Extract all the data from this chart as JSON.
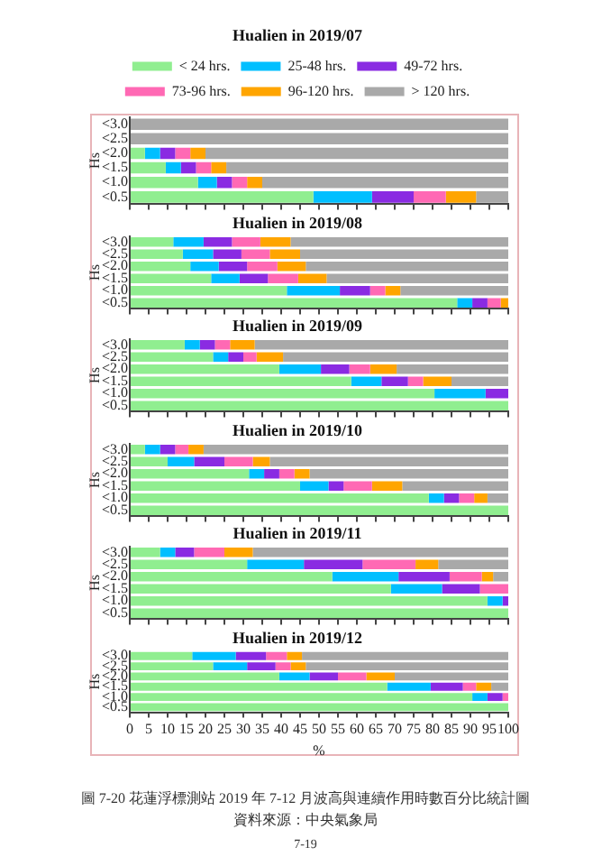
{
  "chart_data": [
    {
      "type": "bar",
      "orientation": "horizontal",
      "stacked": true,
      "title": "Hualien in 2019/07",
      "ylabel": "Hs",
      "legend": "top",
      "grid": false,
      "tick_labels": "y",
      "categories": [
        "<3.0",
        "<2.5",
        "<2.0",
        "<1.5",
        "<1.0",
        "<0.5"
      ],
      "xlim": [
        0,
        100
      ],
      "xticks": [
        0,
        5,
        10,
        15,
        20,
        25,
        30,
        35,
        40,
        45,
        50,
        55,
        60,
        65,
        70,
        75,
        80,
        85,
        90,
        95,
        100
      ],
      "series": [
        {
          "name": "< 24 hrs.",
          "color": "#90ee90",
          "values": [
            0,
            0,
            4,
            9.5,
            18,
            48.5
          ]
        },
        {
          "name": "25-48 hrs.",
          "color": "#00bfff",
          "values": [
            0,
            0,
            4,
            4,
            5,
            15.5
          ]
        },
        {
          "name": "49-72 hrs.",
          "color": "#8a2be2",
          "values": [
            0,
            0,
            4,
            4,
            4,
            11
          ]
        },
        {
          "name": "73-96 hrs.",
          "color": "#ff69b4",
          "values": [
            0,
            0,
            4,
            4,
            4,
            8.5
          ]
        },
        {
          "name": "96-120 hrs.",
          "color": "#ffa500",
          "values": [
            0,
            0,
            4,
            4,
            4,
            8
          ]
        },
        {
          "name": "> 120 hrs.",
          "color": "#a9a9a9",
          "values": [
            100,
            100,
            80,
            74.5,
            65,
            8.5
          ]
        }
      ]
    },
    {
      "type": "bar",
      "orientation": "horizontal",
      "stacked": true,
      "title": "Hualien in 2019/08",
      "ylabel": "Hs",
      "grid": false,
      "tick_labels": "y",
      "categories": [
        "<3.0",
        "<2.5",
        "<2.0",
        "<1.5",
        "<1.0",
        "<0.5"
      ],
      "xlim": [
        0,
        100
      ],
      "xticks": [
        0,
        5,
        10,
        15,
        20,
        25,
        30,
        35,
        40,
        45,
        50,
        55,
        60,
        65,
        70,
        75,
        80,
        85,
        90,
        95,
        100
      ],
      "series": [
        {
          "color": "#90ee90",
          "values": [
            11.5,
            14,
            16,
            21.5,
            41.5,
            86.5
          ]
        },
        {
          "color": "#00bfff",
          "values": [
            8,
            8,
            7.5,
            7.5,
            14,
            4
          ]
        },
        {
          "color": "#8a2be2",
          "values": [
            7.5,
            7.5,
            7.5,
            7.5,
            8,
            4
          ]
        },
        {
          "color": "#ff69b4",
          "values": [
            7.5,
            7.5,
            8,
            8,
            4,
            3.5
          ]
        },
        {
          "color": "#ffa500",
          "values": [
            8,
            8,
            7.5,
            7.5,
            4,
            2
          ]
        },
        {
          "color": "#a9a9a9",
          "values": [
            57.5,
            55,
            53.5,
            48,
            28.5,
            0
          ]
        }
      ]
    },
    {
      "type": "bar",
      "orientation": "horizontal",
      "stacked": true,
      "title": "Hualien in 2019/09",
      "ylabel": "Hs",
      "grid": false,
      "tick_labels": "y",
      "categories": [
        "<3.0",
        "<2.5",
        "<2.0",
        "<1.5",
        "<1.0",
        "<0.5"
      ],
      "xlim": [
        0,
        100
      ],
      "xticks": [
        0,
        5,
        10,
        15,
        20,
        25,
        30,
        35,
        40,
        45,
        50,
        55,
        60,
        65,
        70,
        75,
        80,
        85,
        90,
        95,
        100
      ],
      "series": [
        {
          "color": "#90ee90",
          "values": [
            14.5,
            22,
            39.5,
            58.5,
            80.5,
            100
          ]
        },
        {
          "color": "#00bfff",
          "values": [
            4,
            4,
            11,
            8,
            13.5,
            0
          ]
        },
        {
          "color": "#8a2be2",
          "values": [
            4,
            4,
            7.5,
            7,
            6,
            0
          ]
        },
        {
          "color": "#ff69b4",
          "values": [
            4,
            3.5,
            5.5,
            4,
            0,
            0
          ]
        },
        {
          "color": "#ffa500",
          "values": [
            6.5,
            7,
            7,
            7.5,
            0,
            0
          ]
        },
        {
          "color": "#a9a9a9",
          "values": [
            67,
            59.5,
            29.5,
            15,
            0,
            0
          ]
        }
      ]
    },
    {
      "type": "bar",
      "orientation": "horizontal",
      "stacked": true,
      "title": "Hualien in 2019/10",
      "ylabel": "Hs",
      "grid": false,
      "tick_labels": "y",
      "categories": [
        "<3.0",
        "<2.5",
        "<2.0",
        "<1.5",
        "<1.0",
        "<0.5"
      ],
      "xlim": [
        0,
        100
      ],
      "xticks": [
        0,
        5,
        10,
        15,
        20,
        25,
        30,
        35,
        40,
        45,
        50,
        55,
        60,
        65,
        70,
        75,
        80,
        85,
        90,
        95,
        100
      ],
      "series": [
        {
          "color": "#90ee90",
          "values": [
            4,
            10,
            31.5,
            45,
            79,
            100
          ]
        },
        {
          "color": "#00bfff",
          "values": [
            4,
            7,
            4,
            7.5,
            4,
            0
          ]
        },
        {
          "color": "#8a2be2",
          "values": [
            4,
            8,
            4,
            4,
            4,
            0
          ]
        },
        {
          "color": "#ff69b4",
          "values": [
            3.5,
            7.5,
            4,
            7.5,
            4,
            0
          ]
        },
        {
          "color": "#ffa500",
          "values": [
            4,
            4.5,
            4,
            8,
            3.5,
            0
          ]
        },
        {
          "color": "#a9a9a9",
          "values": [
            80.5,
            63,
            52.5,
            28,
            5.5,
            0
          ]
        }
      ]
    },
    {
      "type": "bar",
      "orientation": "horizontal",
      "stacked": true,
      "title": "Hualien in 2019/11",
      "ylabel": "Hs",
      "grid": false,
      "tick_labels": "y",
      "categories": [
        "<3.0",
        "<2.5",
        "<2.0",
        "<1.5",
        "<1.0",
        "<0.5"
      ],
      "xlim": [
        0,
        100
      ],
      "xticks": [
        0,
        5,
        10,
        15,
        20,
        25,
        30,
        35,
        40,
        45,
        50,
        55,
        60,
        65,
        70,
        75,
        80,
        85,
        90,
        95,
        100
      ],
      "series": [
        {
          "color": "#90ee90",
          "values": [
            8,
            31,
            53.5,
            69,
            94.5,
            100
          ]
        },
        {
          "color": "#00bfff",
          "values": [
            4,
            15,
            17.5,
            13.5,
            4,
            0
          ]
        },
        {
          "color": "#8a2be2",
          "values": [
            5,
            15.5,
            13.5,
            10,
            1.5,
            0
          ]
        },
        {
          "color": "#ff69b4",
          "values": [
            8,
            14,
            8.5,
            7.5,
            0,
            0
          ]
        },
        {
          "color": "#ffa500",
          "values": [
            7.5,
            6,
            3,
            0,
            0,
            0
          ]
        },
        {
          "color": "#a9a9a9",
          "values": [
            67.5,
            18.5,
            4,
            0,
            0,
            0
          ]
        }
      ]
    },
    {
      "type": "bar",
      "orientation": "horizontal",
      "stacked": true,
      "title": "Hualien in 2019/12",
      "ylabel": "Hs",
      "xlabel": "%",
      "grid": false,
      "categories": [
        "<3.0",
        "<2.5",
        "<2.0",
        "<1.5",
        "<1.0",
        "<0.5"
      ],
      "xlim": [
        0,
        100
      ],
      "xticks": [
        0,
        5,
        10,
        15,
        20,
        25,
        30,
        35,
        40,
        45,
        50,
        55,
        60,
        65,
        70,
        75,
        80,
        85,
        90,
        95,
        100
      ],
      "series": [
        {
          "color": "#90ee90",
          "values": [
            16.5,
            22,
            39.5,
            68,
            90.5,
            100
          ]
        },
        {
          "color": "#00bfff",
          "values": [
            11.5,
            9,
            8,
            11.5,
            4,
            0
          ]
        },
        {
          "color": "#8a2be2",
          "values": [
            8,
            7.5,
            7.5,
            8.5,
            4,
            0
          ]
        },
        {
          "color": "#ff69b4",
          "values": [
            5.5,
            4,
            7.5,
            3.5,
            1.5,
            0
          ]
        },
        {
          "color": "#ffa500",
          "values": [
            4,
            4,
            7.5,
            4,
            0,
            0
          ]
        },
        {
          "color": "#a9a9a9",
          "values": [
            54.5,
            53.5,
            30,
            4.5,
            0,
            0
          ]
        }
      ],
      "annotations": [
        "圖 7-20 花蓮浮標測站 2019 年 7-12 月波高與連續作用時數百分比統計圖",
        "資料來源：中央氣象局",
        "7-19"
      ]
    }
  ]
}
